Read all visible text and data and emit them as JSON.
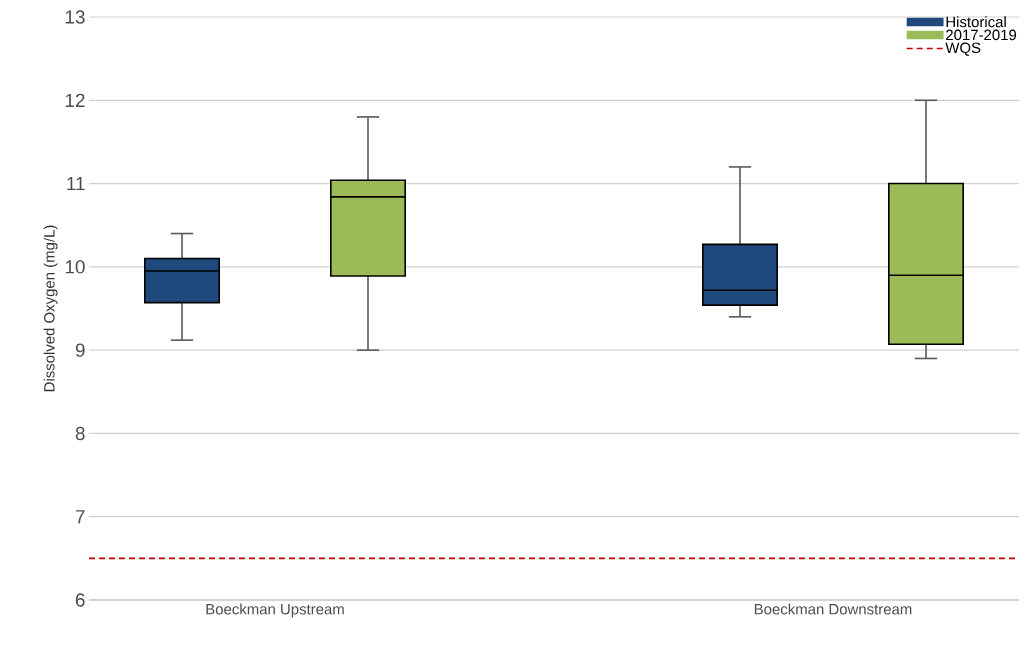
{
  "chart_data": {
    "type": "box",
    "ylabel": "Dissolved Oxygen (mg/L)",
    "categories": [
      "Boeckman Upstream",
      "Boeckman Downstream"
    ],
    "series": [
      {
        "name": "Historical",
        "color": "#1f497d",
        "boxes": [
          {
            "low": 9.12,
            "q1": 9.57,
            "median": 9.95,
            "q3": 10.1,
            "high": 10.4
          },
          {
            "low": 9.4,
            "q1": 9.54,
            "median": 9.72,
            "q3": 10.27,
            "high": 11.2
          }
        ]
      },
      {
        "name": "2017-2019",
        "color": "#9bbb59",
        "boxes": [
          {
            "low": 9.0,
            "q1": 9.89,
            "median": 10.84,
            "q3": 11.04,
            "high": 11.8
          },
          {
            "low": 8.9,
            "q1": 9.07,
            "median": 9.9,
            "q3": 11.0,
            "high": 12.0
          }
        ]
      }
    ],
    "ref_lines": [
      {
        "axis": "y",
        "value": 6.5,
        "label": "WQS",
        "color": "#c00000",
        "line_style": "dashed"
      }
    ],
    "ylim": [
      6,
      13
    ],
    "yticks": [
      6,
      7,
      8,
      9,
      10,
      11,
      12,
      13
    ],
    "grid": "y",
    "legend": "top right"
  }
}
